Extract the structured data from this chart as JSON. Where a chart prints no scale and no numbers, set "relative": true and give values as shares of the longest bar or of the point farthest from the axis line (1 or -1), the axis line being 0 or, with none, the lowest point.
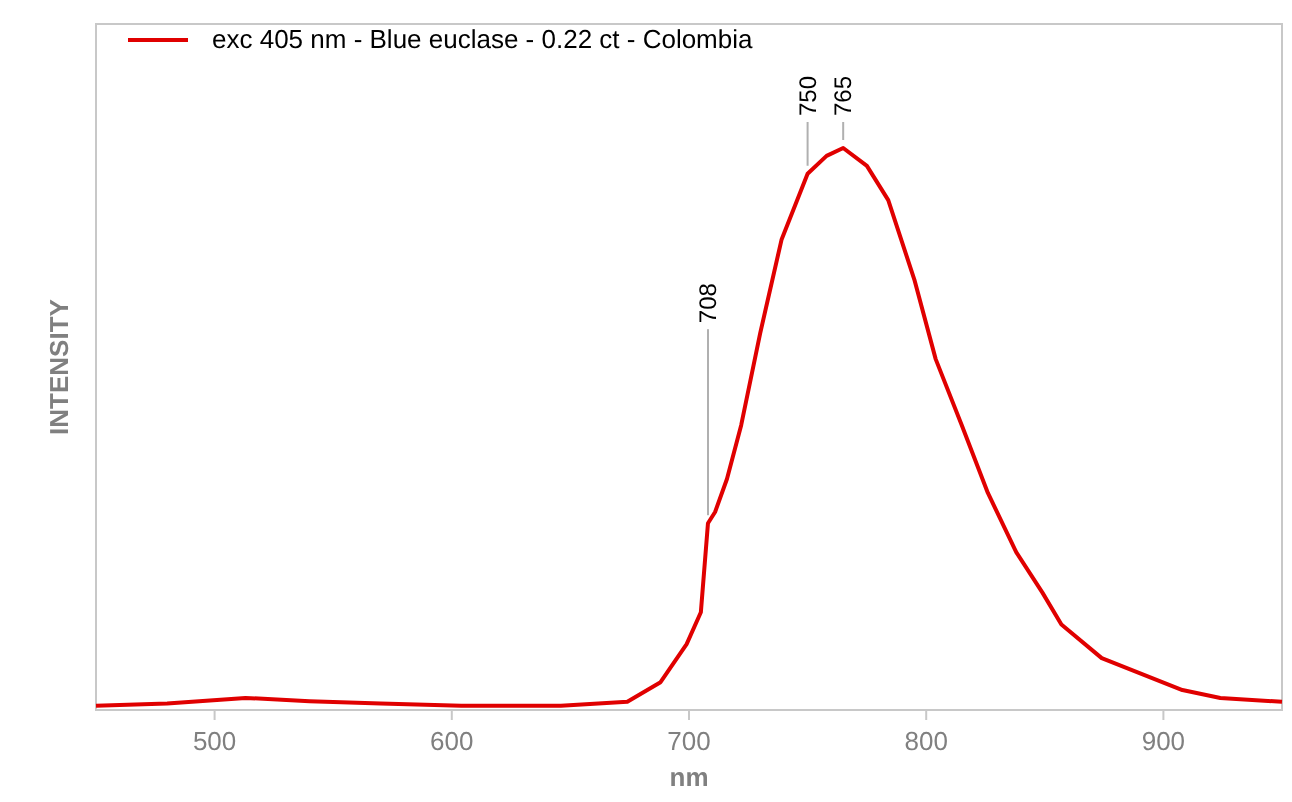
{
  "chart_data": {
    "type": "line",
    "relative": true,
    "xlabel": "nm",
    "ylabel": "INTENSITY",
    "xlim": [
      450,
      950
    ],
    "xticks": [
      500,
      600,
      700,
      800,
      900
    ],
    "legend": "top left",
    "grid": false,
    "series": [
      {
        "name": "exc 405 nm - Blue euclase - 0.22 ct - Colombia",
        "color": "#e00000",
        "x": [
          450,
          480,
          513,
          540,
          570,
          604,
          646,
          674,
          688,
          699,
          705,
          708,
          711,
          716,
          722,
          730,
          739,
          750,
          758,
          765,
          775,
          784,
          795,
          804,
          815,
          826,
          838,
          849,
          857,
          874,
          908,
          924,
          950
        ],
        "values": [
          0.004,
          0.008,
          0.018,
          0.012,
          0.008,
          0.004,
          0.004,
          0.011,
          0.046,
          0.114,
          0.171,
          0.33,
          0.35,
          0.409,
          0.505,
          0.669,
          0.836,
          0.954,
          0.986,
          1,
          0.968,
          0.907,
          0.765,
          0.623,
          0.505,
          0.384,
          0.278,
          0.206,
          0.149,
          0.089,
          0.032,
          0.018,
          0.011
        ]
      }
    ],
    "annotations": [
      {
        "text": "708",
        "x": 708,
        "y": 0.33
      },
      {
        "text": "750",
        "x": 750,
        "y": 0.954
      },
      {
        "text": "765",
        "x": 765,
        "y": 1
      }
    ]
  }
}
